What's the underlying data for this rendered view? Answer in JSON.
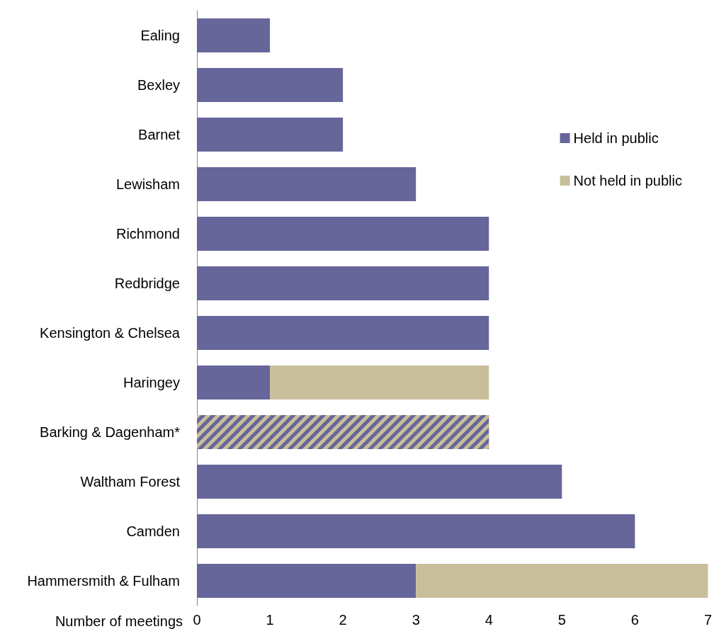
{
  "chart_data": {
    "type": "bar",
    "orientation": "horizontal",
    "stacked": true,
    "xlabel": "Number of meetings",
    "categories": [
      "Ealing",
      "Bexley",
      "Barnet",
      "Lewisham",
      "Richmond",
      "Redbridge",
      "Kensington & Chelsea",
      "Haringey",
      "Barking & Dagenham*",
      "Waltham Forest",
      "Camden",
      "Hammersmith & Fulham"
    ],
    "series": [
      {
        "name": "Held in public",
        "color": "#66669a",
        "values": [
          1,
          2,
          2,
          3,
          4,
          4,
          4,
          1,
          null,
          5,
          6,
          3
        ]
      },
      {
        "name": "Not held in public",
        "color": "#c8bf9a",
        "values": [
          null,
          null,
          null,
          null,
          null,
          null,
          null,
          3,
          null,
          null,
          null,
          4
        ]
      },
      {
        "color": "#66669a",
        "values": [
          null,
          null,
          null,
          null,
          null,
          null,
          null,
          null,
          4,
          null,
          null,
          null
        ]
      }
    ],
    "xlim": [
      0,
      7
    ],
    "xticks": [
      0,
      1,
      2,
      3,
      4,
      5,
      6,
      7
    ],
    "grid": false,
    "legend": "right"
  }
}
